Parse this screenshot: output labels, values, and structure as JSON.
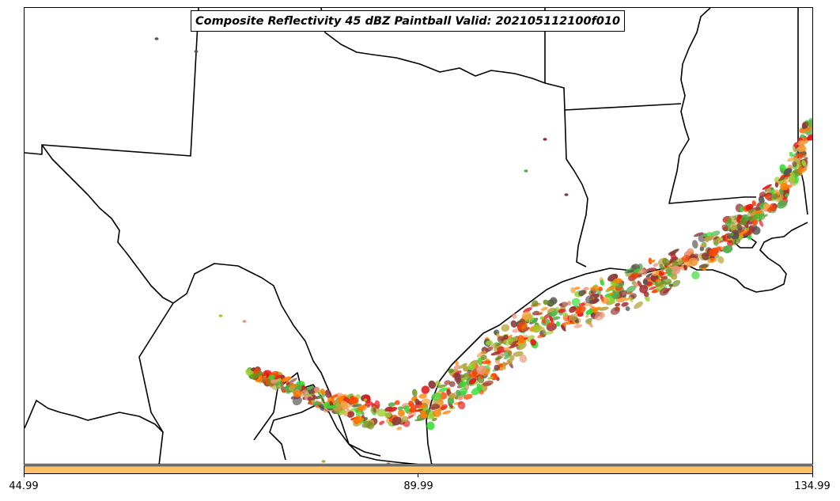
{
  "title": "Composite Reflectivity 45 dBZ Paintball Valid: 202105112100f010",
  "colorbar": {
    "color": "#ffc164",
    "tick_labels": [
      "44.99",
      "89.99",
      "134.99"
    ]
  },
  "colors": {
    "border": "#000000",
    "paintball": [
      "#e41a1c",
      "#ff7f00",
      "#f4a442",
      "#4daf4a",
      "#33dd33",
      "#6b8e23",
      "#9acd32",
      "#a52a2a",
      "#8b3a3a",
      "#555555",
      "#e9967a",
      "#ff4500",
      "#b5a642"
    ]
  }
}
